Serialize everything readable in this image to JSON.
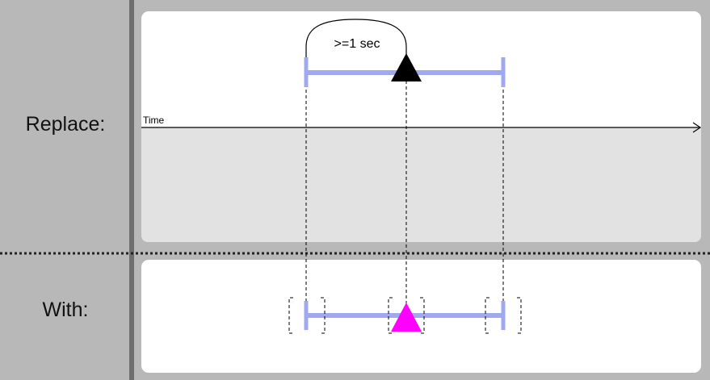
{
  "rule": {
    "replace_label": "Replace:",
    "with_label": "With:",
    "time_label": "Time",
    "duration_label": ">=1 sec"
  },
  "colors": {
    "interval_bar": "#a0a8f0",
    "event_marker_replace": "#000000",
    "event_marker_with": "#ff00ff",
    "panel": "#ffffff",
    "timeline_band": "#e2e2e2",
    "divider": "#6e6e6e"
  }
}
